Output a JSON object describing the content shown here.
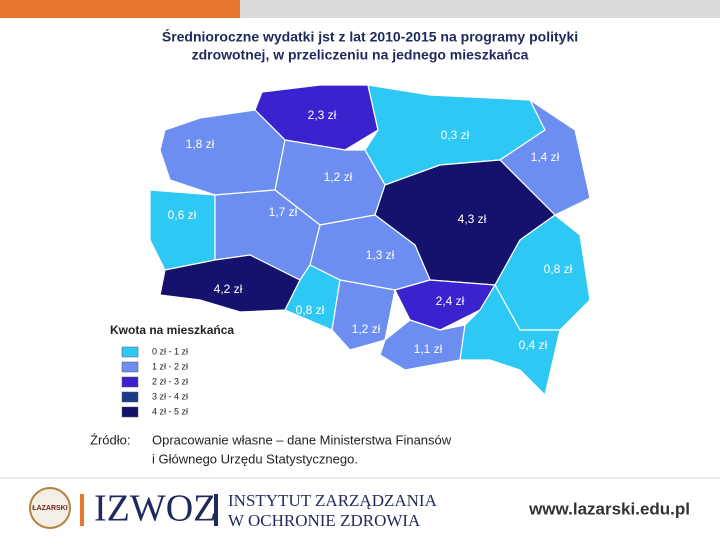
{
  "title": [
    "Średnioroczne wydatki jst z lat 2010-2015 na programy polityki",
    "zdrowotnej,  w przeliczeniu na jednego mieszkańca"
  ],
  "regions": [
    {
      "label": "2,3 zł",
      "color": "#3b22cf"
    },
    {
      "label": "0,3 zł",
      "color": "#2ec8f5"
    },
    {
      "label": "1,4 zł",
      "color": "#6b8ef0"
    },
    {
      "label": "1,8 zł",
      "color": "#6b8ef0"
    },
    {
      "label": "1,2 zł",
      "color": "#6b8ef0"
    },
    {
      "label": "4,3 zł",
      "color": "#14126c"
    },
    {
      "label": "0,6 zł",
      "color": "#2ec8f5"
    },
    {
      "label": "1,7 zł",
      "color": "#6b8ef0"
    },
    {
      "label": "1,3 zł",
      "color": "#6b8ef0"
    },
    {
      "label": "0,8 zł",
      "color": "#2ec8f5"
    },
    {
      "label": "4,2 zł",
      "color": "#14126c"
    },
    {
      "label": "0,8 zł",
      "color": "#2ec8f5"
    },
    {
      "label": "1,2 zł",
      "color": "#6b8ef0"
    },
    {
      "label": "2,4 zł",
      "color": "#3b22cf"
    },
    {
      "label": "1,1 zł",
      "color": "#6b8ef0"
    },
    {
      "label": "0,4 zł",
      "color": "#2ec8f5"
    }
  ],
  "legend": {
    "title": "Kwota na mieszkańca",
    "items": [
      {
        "label": "0 zł - 1 zł",
        "color": "#2ec8f5"
      },
      {
        "label": "1 zł - 2 zł",
        "color": "#6b8ef0"
      },
      {
        "label": "2 zł - 3 zł",
        "color": "#3b22cf"
      },
      {
        "label": "3 zł - 4 zł",
        "color": "#1b3a8c"
      },
      {
        "label": "4 zł - 5 zł",
        "color": "#14126c"
      }
    ]
  },
  "source": {
    "prefix": "Źródło:",
    "lines": [
      "Opracowanie własne – dane Ministerstwa Finansów",
      "i Głównego Urzędu Statystycznego."
    ]
  },
  "footer": {
    "badge": "ŁAZARSKI",
    "logo": "IZWOZ",
    "institute": [
      "INSTYTUT ZARZĄDZANIA",
      "W OCHRONIE ZDROWIA"
    ],
    "url": "www.lazarski.edu.pl"
  }
}
